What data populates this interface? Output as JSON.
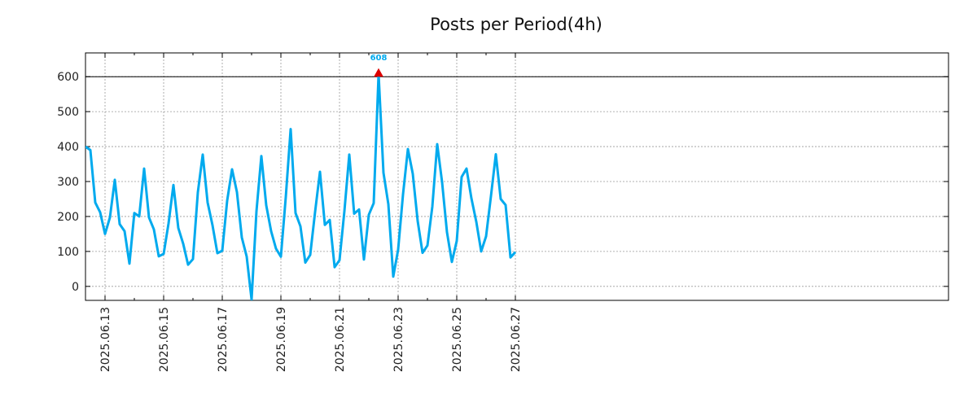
{
  "chart_data": {
    "type": "line",
    "title": "Posts per Period(4h)",
    "xlabel": "",
    "ylabel": "",
    "ylim": [
      -40,
      668
    ],
    "yticks": [
      0,
      100,
      200,
      300,
      400,
      500,
      600
    ],
    "reference_line": 600,
    "x_start_hours_before_first_tick": 16,
    "step_hours": 4,
    "xticks": [
      "2025.06.13",
      "2025.06.15",
      "2025.06.17",
      "2025.06.19",
      "2025.06.21",
      "2025.06.23",
      "2025.06.25",
      "2025.06.27"
    ],
    "grid": true,
    "colors": {
      "line": "#00aaee",
      "peak_marker": "#dd0000",
      "ref_line": "#000000"
    },
    "peak": {
      "label": "608",
      "value": 608
    },
    "series": [
      {
        "name": "posts",
        "values": [
          400,
          390,
          240,
          212,
          150,
          197,
          305,
          178,
          158,
          65,
          210,
          200,
          337,
          197,
          163,
          86,
          93,
          180,
          290,
          167,
          122,
          62,
          78,
          269,
          377,
          240,
          175,
          95,
          102,
          245,
          335,
          270,
          140,
          85,
          -38,
          215,
          373,
          232,
          158,
          108,
          85,
          255,
          450,
          210,
          172,
          68,
          90,
          213,
          328,
          176,
          190,
          55,
          75,
          215,
          377,
          208,
          220,
          77,
          205,
          238,
          608,
          325,
          235,
          28,
          105,
          263,
          393,
          322,
          187,
          96,
          117,
          228,
          407,
          298,
          155,
          70,
          130,
          313,
          337,
          252,
          185,
          100,
          143,
          258,
          378,
          250,
          233,
          83,
          98
        ]
      }
    ]
  }
}
